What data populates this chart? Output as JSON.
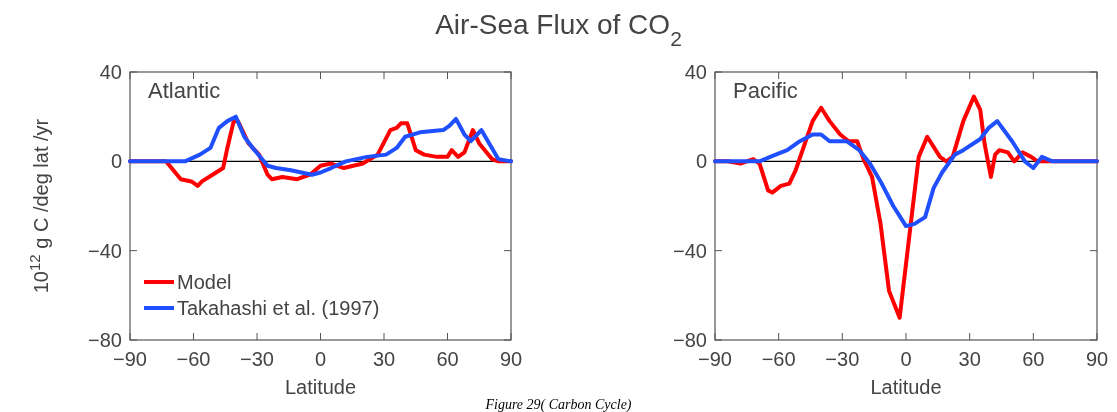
{
  "chart_data": [
    {
      "type": "line",
      "title": "Air-Sea Flux of CO$_{2}$",
      "xlabel": "Latitude",
      "ylabel": "10$^{12}$ g C /deg lat /yr",
      "annotations": [
        "Atlantic",
        "Figure 29( Carbon Cycle)"
      ],
      "xlim": [
        -90,
        90
      ],
      "xticks": [
        -90,
        -60,
        -30,
        0,
        30,
        60,
        90
      ],
      "ylim": [
        -80,
        40
      ],
      "yticks": [
        -80,
        -40,
        0,
        40
      ],
      "ref_lines": [
        {
          "axis": "y",
          "value": 0,
          "color": "#000000"
        }
      ],
      "legend": "bottom left",
      "grid": false,
      "series": [
        {
          "name": "Model",
          "color": "#ff0000",
          "x": [
            -90,
            -73,
            -66,
            -61,
            -58,
            -56,
            -51,
            -46,
            -44,
            -41,
            -39,
            -34,
            -29,
            -25,
            -23,
            -18,
            -11,
            -5,
            0,
            5,
            11,
            20,
            27,
            33,
            36,
            38,
            41,
            45,
            49,
            55,
            60,
            62,
            65,
            68,
            72,
            75,
            81,
            84,
            90
          ],
          "values": [
            0,
            0,
            -8,
            -9,
            -11,
            -9,
            -6,
            -3,
            6,
            18,
            18,
            8,
            3,
            -6,
            -8,
            -7,
            -8,
            -6,
            -2,
            -1,
            -3,
            -1,
            3,
            14,
            15,
            17,
            17,
            5,
            3,
            2,
            2,
            5,
            2,
            4,
            14,
            8,
            1,
            0,
            0
          ]
        },
        {
          "name": "Takahashi et al. (1997)",
          "color": "#1f4fff",
          "x": [
            -90,
            -64,
            -57,
            -52,
            -48,
            -44,
            -40,
            -36,
            -32,
            -25,
            -21,
            -14,
            -9,
            -4,
            0,
            5,
            12,
            22,
            31,
            36,
            40,
            47,
            58,
            61,
            64,
            68,
            71,
            76,
            84,
            90
          ],
          "values": [
            0,
            0,
            3,
            6,
            15,
            18,
            20,
            11,
            6,
            -2,
            -3,
            -4,
            -5,
            -6,
            -5,
            -3,
            0,
            2,
            3,
            6,
            11,
            13,
            14,
            16,
            19,
            12,
            9,
            14,
            1,
            0
          ]
        }
      ]
    },
    {
      "type": "line",
      "xlabel": "Latitude",
      "annotations": [
        "Pacific"
      ],
      "xlim": [
        -90,
        90
      ],
      "xticks": [
        -90,
        -60,
        -30,
        0,
        30,
        60,
        90
      ],
      "ylim": [
        -80,
        40
      ],
      "yticks": [
        -80,
        -40,
        0,
        40
      ],
      "ref_lines": [
        {
          "axis": "y",
          "value": 0,
          "color": "#000000"
        }
      ],
      "grid": false,
      "series": [
        {
          "color": "#ff0000",
          "x": [
            -90,
            -84,
            -78,
            -72,
            -69,
            -65,
            -63,
            -59,
            -55,
            -52,
            -48,
            -44,
            -40,
            -36,
            -31,
            -27,
            -23,
            -20,
            -16,
            -12,
            -8,
            -3,
            2,
            6,
            10,
            16,
            19,
            22,
            27,
            32,
            35,
            37,
            40,
            42,
            44,
            48,
            51,
            55,
            59,
            62,
            65,
            90
          ],
          "values": [
            0,
            0,
            -1,
            1,
            -1,
            -13,
            -14,
            -11,
            -10,
            -4,
            7,
            18,
            24,
            18,
            12,
            9,
            9,
            1,
            -7,
            -28,
            -58,
            -70,
            -30,
            2,
            11,
            2,
            0,
            2,
            18,
            29,
            23,
            8,
            -7,
            3,
            5,
            4,
            0,
            4,
            2,
            0,
            0,
            0
          ]
        },
        {
          "color": "#1f4fff",
          "x": [
            -90,
            -69,
            -64,
            -56,
            -50,
            -44,
            -40,
            -36,
            -28,
            -22,
            -17,
            -12,
            -6,
            0,
            4,
            9,
            13,
            17,
            23,
            27,
            35,
            39,
            43,
            50,
            56,
            60,
            64,
            69,
            90
          ],
          "values": [
            0,
            0,
            2,
            5,
            9,
            12,
            12,
            9,
            9,
            5,
            -1,
            -9,
            -20,
            -29,
            -28,
            -25,
            -12,
            -5,
            3,
            5,
            10,
            15,
            18,
            9,
            0,
            -3,
            2,
            0,
            0
          ]
        }
      ]
    }
  ]
}
